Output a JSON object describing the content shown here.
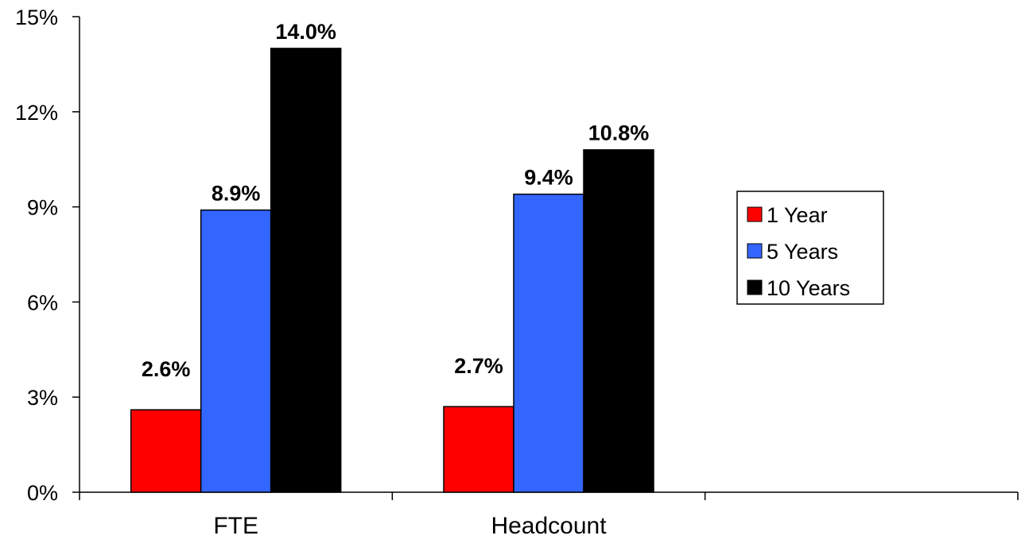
{
  "chart_data": {
    "type": "bar",
    "categories": [
      "FTE",
      "Headcount"
    ],
    "series": [
      {
        "name": "1 Year",
        "values": [
          2.6,
          2.7
        ],
        "labels": [
          "2.6%",
          "2.7%"
        ],
        "color": "#ff0000"
      },
      {
        "name": "5 Years",
        "values": [
          8.9,
          9.4
        ],
        "labels": [
          "8.9%",
          "9.4%"
        ],
        "color": "#3366ff"
      },
      {
        "name": "10 Years",
        "values": [
          14.0,
          10.8
        ],
        "labels": [
          "14.0%",
          "10.8%"
        ],
        "color": "#000000"
      }
    ],
    "yticks": [
      {
        "value": 0,
        "label": "0%"
      },
      {
        "value": 3,
        "label": "3%"
      },
      {
        "value": 6,
        "label": "6%"
      },
      {
        "value": 9,
        "label": "9%"
      },
      {
        "value": 12,
        "label": "12%"
      },
      {
        "value": 15,
        "label": "15%"
      }
    ],
    "ylim": [
      0,
      15
    ],
    "grid": false,
    "legend_position": "right",
    "title": "",
    "xlabel": "",
    "ylabel": ""
  }
}
